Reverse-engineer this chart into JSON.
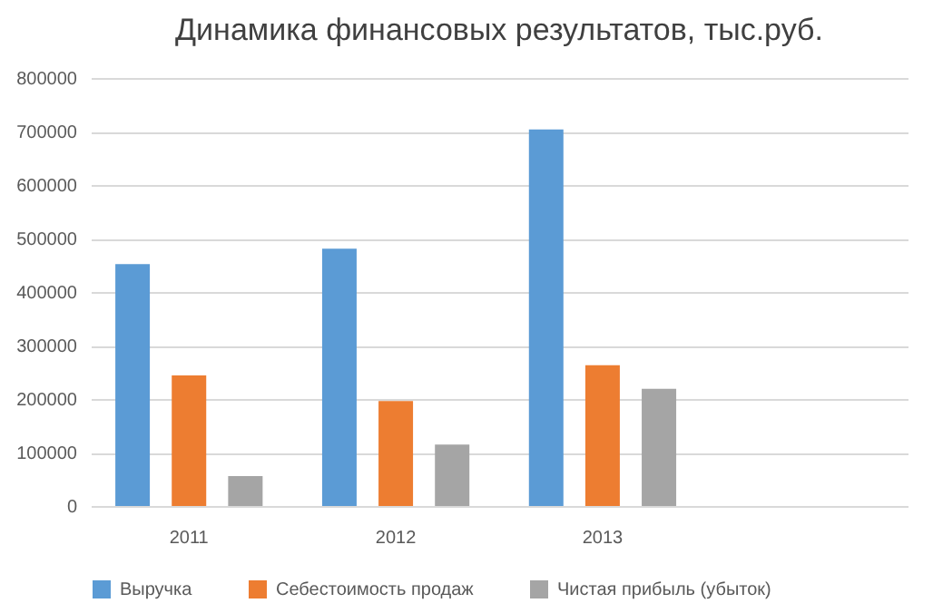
{
  "chart_data": {
    "type": "bar",
    "title": "Динамика финансовых результатов, тыс.руб.",
    "categories": [
      "2011",
      "2012",
      "2013",
      null
    ],
    "series": [
      {
        "name": "Выручка",
        "color": "#5b9bd5",
        "values": [
          452000,
          481000,
          704000,
          null
        ]
      },
      {
        "name": "Себестоимость продаж",
        "color": "#ed7d31",
        "values": [
          244000,
          196000,
          263000,
          null
        ]
      },
      {
        "name": "Чистая прибыль (убыток)",
        "color": "#a5a5a5",
        "values": [
          56000,
          115000,
          219000,
          null
        ]
      }
    ],
    "ylim": [
      0,
      800000
    ],
    "yticks": [
      0,
      100000,
      200000,
      300000,
      400000,
      500000,
      600000,
      700000,
      800000
    ],
    "grid": "y",
    "legend": "bottom"
  }
}
